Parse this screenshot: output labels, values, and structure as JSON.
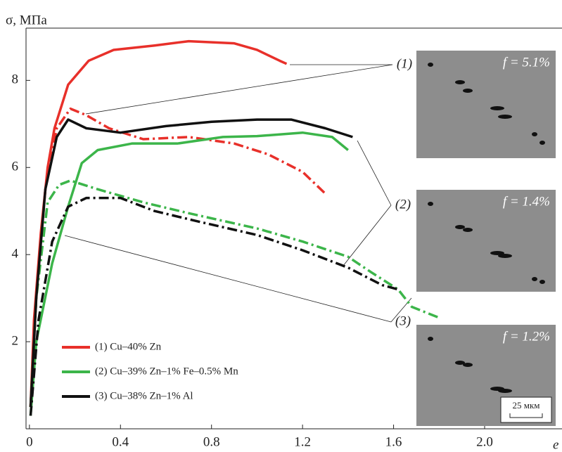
{
  "chart_data": {
    "type": "line",
    "y_label": "σ, МПа",
    "x_label": "e",
    "xlim": [
      -0.015,
      2.34
    ],
    "ylim": [
      0,
      9.2
    ],
    "xticks": [
      0,
      0.4,
      0.8,
      1.2,
      1.6,
      {
        "value": 2,
        "label": "2.0"
      }
    ],
    "yticks": [
      2,
      4,
      6,
      8
    ],
    "series": [
      {
        "name": "(1) Cu–40% Zn",
        "color": "#e8302a",
        "style": "solid",
        "x": [
          0.005,
          0.02,
          0.05,
          0.08,
          0.11,
          0.17,
          0.26,
          0.37,
          0.55,
          0.7,
          0.9,
          1.0,
          1.1,
          1.13
        ],
        "values": [
          0.5,
          2.5,
          4.5,
          6,
          6.9,
          7.9,
          8.45,
          8.7,
          8.8,
          8.9,
          8.85,
          8.7,
          8.45,
          8.38
        ]
      },
      {
        "color": "#e8302a",
        "style": "dashdot",
        "x": [
          0.005,
          0.03,
          0.07,
          0.12,
          0.18,
          0.25,
          0.35,
          0.5,
          0.7,
          0.9,
          1.05,
          1.2,
          1.3
        ],
        "values": [
          0.5,
          3,
          5.5,
          6.9,
          7.35,
          7.2,
          6.9,
          6.65,
          6.7,
          6.55,
          6.3,
          5.9,
          5.4
        ]
      },
      {
        "name": "(2) Cu–39% Zn–1% Fe–0.5% Mn",
        "color": "#3cb54a",
        "style": "solid",
        "x": [
          0.005,
          0.03,
          0.1,
          0.17,
          0.23,
          0.3,
          0.45,
          0.65,
          0.85,
          1.0,
          1.2,
          1.33,
          1.4
        ],
        "values": [
          0.3,
          2,
          3.8,
          5.1,
          6.1,
          6.4,
          6.55,
          6.55,
          6.7,
          6.72,
          6.8,
          6.7,
          6.4
        ]
      },
      {
        "color": "#3cb54a",
        "style": "dashdot",
        "x": [
          0.005,
          0.03,
          0.08,
          0.13,
          0.18,
          0.3,
          0.5,
          0.7,
          1.0,
          1.2,
          1.4,
          1.5,
          1.62,
          1.68,
          1.8
        ],
        "values": [
          0.5,
          3,
          5.2,
          5.6,
          5.7,
          5.5,
          5.2,
          4.95,
          4.6,
          4.3,
          3.95,
          3.6,
          3.2,
          2.8,
          2.55
        ]
      },
      {
        "name": "(3) Cu–38% Zn–1% Al",
        "color": "#111111",
        "style": "solid",
        "x": [
          0.005,
          0.03,
          0.07,
          0.12,
          0.17,
          0.25,
          0.4,
          0.6,
          0.8,
          1.0,
          1.15,
          1.3,
          1.42
        ],
        "values": [
          0.5,
          3,
          5.5,
          6.7,
          7.1,
          6.9,
          6.8,
          6.95,
          7.05,
          7.1,
          7.1,
          6.9,
          6.7
        ]
      },
      {
        "color": "#111111",
        "style": "dashdot",
        "x": [
          0.005,
          0.04,
          0.1,
          0.17,
          0.25,
          0.4,
          0.55,
          0.75,
          1.0,
          1.2,
          1.4,
          1.55,
          1.62
        ],
        "values": [
          0.3,
          2.5,
          4.3,
          5.1,
          5.3,
          5.3,
          5.0,
          4.75,
          4.45,
          4.1,
          3.7,
          3.3,
          3.2
        ]
      }
    ],
    "annotations": [
      "(1)",
      "(2)",
      "(3)"
    ],
    "micrographs": [
      "f = 5.1%",
      "f = 1.4%",
      "f = 1.2%"
    ],
    "scale_bar": "25 мкм"
  }
}
